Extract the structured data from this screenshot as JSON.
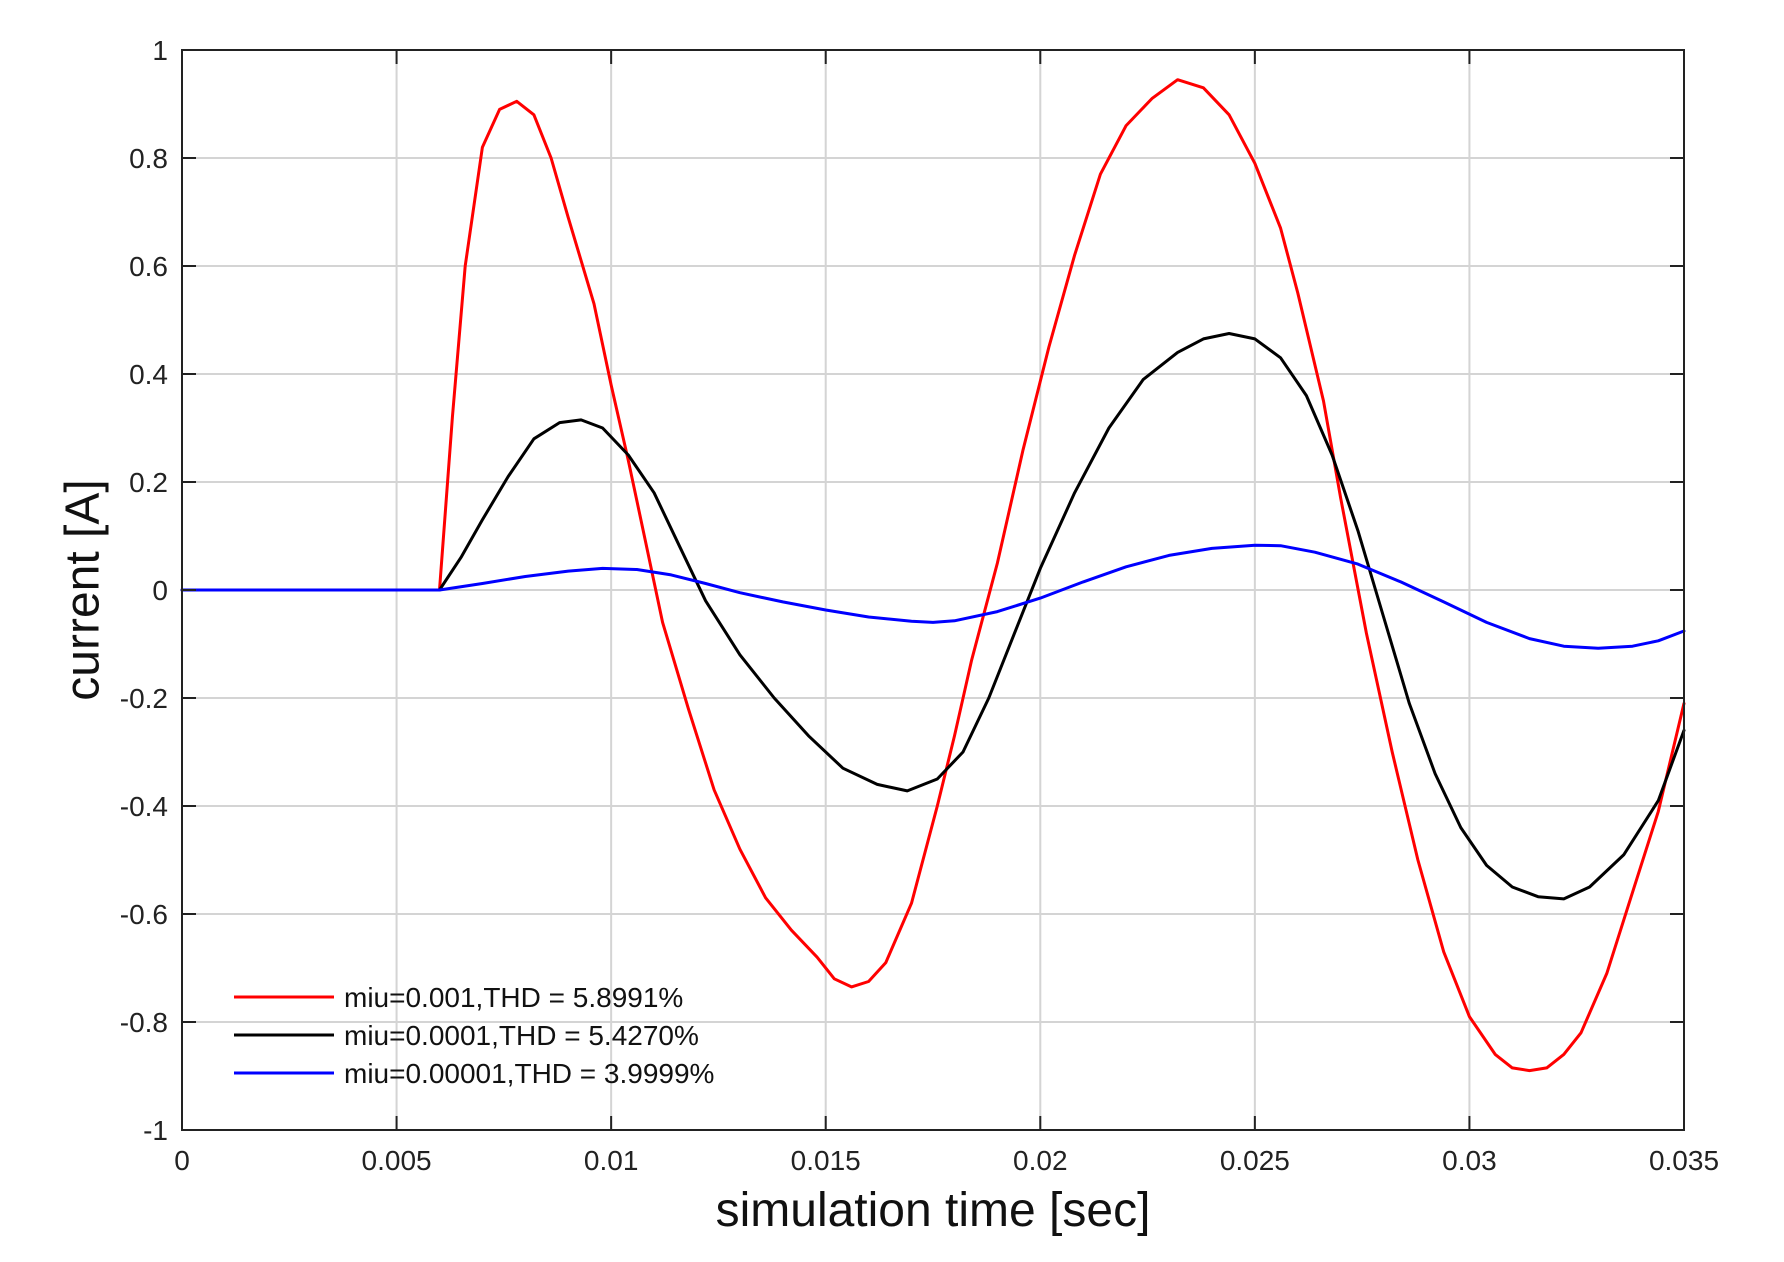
{
  "chart_data": {
    "type": "line",
    "title": "",
    "xlabel": "simulation time [sec]",
    "ylabel": "current [A]",
    "xlim": [
      0,
      0.035
    ],
    "ylim": [
      -1,
      1
    ],
    "grid": true,
    "legend_position": "bottom-left",
    "xticks": [
      0,
      0.005,
      0.01,
      0.015,
      0.02,
      0.025,
      0.03,
      0.035
    ],
    "xtick_labels": [
      "0",
      "0.005",
      "0.01",
      "0.015",
      "0.02",
      "0.025",
      "0.03",
      "0.035"
    ],
    "yticks": [
      1,
      0.8,
      0.6,
      0.4,
      0.2,
      0,
      -0.2,
      -0.4,
      -0.6,
      -0.8,
      -1
    ],
    "ytick_labels": [
      "1",
      "0.8",
      "0.6",
      "0.4",
      "0.2",
      "0",
      "-0.2",
      "-0.4",
      "-0.6",
      "-0.8",
      "-1"
    ],
    "series": [
      {
        "name": "miu=0.001,THD = 5.8991%",
        "color": "#ff0000",
        "points": [
          [
            0,
            0
          ],
          [
            0.006,
            0
          ],
          [
            0.0063,
            0.32
          ],
          [
            0.0066,
            0.6
          ],
          [
            0.007,
            0.82
          ],
          [
            0.0074,
            0.89
          ],
          [
            0.0078,
            0.905
          ],
          [
            0.0082,
            0.88
          ],
          [
            0.0086,
            0.8
          ],
          [
            0.009,
            0.69
          ],
          [
            0.0096,
            0.53
          ],
          [
            0.01,
            0.38
          ],
          [
            0.0104,
            0.24
          ],
          [
            0.0108,
            0.09
          ],
          [
            0.0112,
            -0.06
          ],
          [
            0.0118,
            -0.22
          ],
          [
            0.0124,
            -0.37
          ],
          [
            0.013,
            -0.48
          ],
          [
            0.0136,
            -0.57
          ],
          [
            0.0142,
            -0.63
          ],
          [
            0.0148,
            -0.68
          ],
          [
            0.0152,
            -0.72
          ],
          [
            0.0156,
            -0.735
          ],
          [
            0.016,
            -0.725
          ],
          [
            0.0164,
            -0.69
          ],
          [
            0.017,
            -0.58
          ],
          [
            0.0176,
            -0.4
          ],
          [
            0.018,
            -0.27
          ],
          [
            0.0184,
            -0.13
          ],
          [
            0.019,
            0.05
          ],
          [
            0.0196,
            0.26
          ],
          [
            0.0202,
            0.45
          ],
          [
            0.0208,
            0.62
          ],
          [
            0.0214,
            0.77
          ],
          [
            0.022,
            0.86
          ],
          [
            0.0226,
            0.91
          ],
          [
            0.0232,
            0.945
          ],
          [
            0.0238,
            0.93
          ],
          [
            0.0244,
            0.88
          ],
          [
            0.025,
            0.79
          ],
          [
            0.0256,
            0.67
          ],
          [
            0.026,
            0.55
          ],
          [
            0.0266,
            0.35
          ],
          [
            0.027,
            0.17
          ],
          [
            0.0276,
            -0.08
          ],
          [
            0.0282,
            -0.3
          ],
          [
            0.0288,
            -0.5
          ],
          [
            0.0294,
            -0.67
          ],
          [
            0.03,
            -0.79
          ],
          [
            0.0306,
            -0.86
          ],
          [
            0.031,
            -0.885
          ],
          [
            0.0314,
            -0.89
          ],
          [
            0.0318,
            -0.885
          ],
          [
            0.0322,
            -0.86
          ],
          [
            0.0326,
            -0.82
          ],
          [
            0.0332,
            -0.71
          ],
          [
            0.0338,
            -0.56
          ],
          [
            0.0344,
            -0.41
          ],
          [
            0.035,
            -0.21
          ]
        ]
      },
      {
        "name": "miu=0.0001,THD = 5.4270%",
        "color": "#000000",
        "points": [
          [
            0,
            0
          ],
          [
            0.006,
            0
          ],
          [
            0.0065,
            0.06
          ],
          [
            0.007,
            0.13
          ],
          [
            0.0076,
            0.21
          ],
          [
            0.0082,
            0.28
          ],
          [
            0.0088,
            0.31
          ],
          [
            0.0093,
            0.315
          ],
          [
            0.0098,
            0.3
          ],
          [
            0.0104,
            0.25
          ],
          [
            0.011,
            0.18
          ],
          [
            0.0116,
            0.08
          ],
          [
            0.0122,
            -0.02
          ],
          [
            0.013,
            -0.12
          ],
          [
            0.0138,
            -0.2
          ],
          [
            0.0146,
            -0.27
          ],
          [
            0.0154,
            -0.33
          ],
          [
            0.0162,
            -0.36
          ],
          [
            0.0169,
            -0.372
          ],
          [
            0.0176,
            -0.35
          ],
          [
            0.0182,
            -0.3
          ],
          [
            0.0188,
            -0.2
          ],
          [
            0.0194,
            -0.08
          ],
          [
            0.02,
            0.04
          ],
          [
            0.0208,
            0.18
          ],
          [
            0.0216,
            0.3
          ],
          [
            0.0224,
            0.39
          ],
          [
            0.0232,
            0.44
          ],
          [
            0.0238,
            0.465
          ],
          [
            0.0244,
            0.475
          ],
          [
            0.025,
            0.465
          ],
          [
            0.0256,
            0.43
          ],
          [
            0.0262,
            0.36
          ],
          [
            0.0268,
            0.25
          ],
          [
            0.0274,
            0.11
          ],
          [
            0.028,
            -0.05
          ],
          [
            0.0286,
            -0.21
          ],
          [
            0.0292,
            -0.34
          ],
          [
            0.0298,
            -0.44
          ],
          [
            0.0304,
            -0.51
          ],
          [
            0.031,
            -0.55
          ],
          [
            0.0316,
            -0.568
          ],
          [
            0.0322,
            -0.572
          ],
          [
            0.0328,
            -0.55
          ],
          [
            0.0336,
            -0.49
          ],
          [
            0.0344,
            -0.39
          ],
          [
            0.035,
            -0.26
          ]
        ]
      },
      {
        "name": "miu=0.00001,THD = 3.9999%",
        "color": "#0000ff",
        "points": [
          [
            0,
            0
          ],
          [
            0.006,
            0
          ],
          [
            0.007,
            0.012
          ],
          [
            0.008,
            0.025
          ],
          [
            0.009,
            0.035
          ],
          [
            0.0098,
            0.04
          ],
          [
            0.0106,
            0.038
          ],
          [
            0.0114,
            0.028
          ],
          [
            0.0122,
            0.012
          ],
          [
            0.013,
            -0.005
          ],
          [
            0.014,
            -0.022
          ],
          [
            0.015,
            -0.037
          ],
          [
            0.016,
            -0.05
          ],
          [
            0.017,
            -0.058
          ],
          [
            0.0175,
            -0.06
          ],
          [
            0.018,
            -0.057
          ],
          [
            0.019,
            -0.04
          ],
          [
            0.02,
            -0.015
          ],
          [
            0.021,
            0.015
          ],
          [
            0.022,
            0.043
          ],
          [
            0.023,
            0.064
          ],
          [
            0.024,
            0.077
          ],
          [
            0.025,
            0.083
          ],
          [
            0.0256,
            0.082
          ],
          [
            0.0264,
            0.07
          ],
          [
            0.0274,
            0.048
          ],
          [
            0.0284,
            0.015
          ],
          [
            0.0294,
            -0.022
          ],
          [
            0.0304,
            -0.06
          ],
          [
            0.0314,
            -0.09
          ],
          [
            0.0322,
            -0.104
          ],
          [
            0.033,
            -0.108
          ],
          [
            0.0338,
            -0.104
          ],
          [
            0.0344,
            -0.094
          ],
          [
            0.035,
            -0.076
          ]
        ]
      }
    ]
  }
}
